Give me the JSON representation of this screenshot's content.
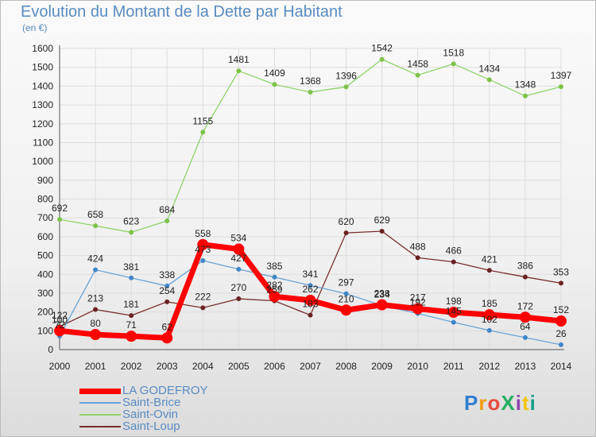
{
  "title": "Evolution du Montant de la Dette par Habitant",
  "subtitle": "(en €)",
  "logo": "ProXiti",
  "colors": {
    "grid": "#dddddd",
    "axis": "#555555",
    "text": "#222222"
  },
  "chart_data": {
    "type": "line",
    "x": [
      "2000",
      "2001",
      "2002",
      "2003",
      "2004",
      "2005",
      "2006",
      "2007",
      "2008",
      "2009",
      "2010",
      "2011",
      "2012",
      "2013",
      "2014"
    ],
    "ylim": [
      0,
      1600
    ],
    "yticks": [
      0,
      100,
      200,
      300,
      400,
      500,
      600,
      700,
      800,
      900,
      1000,
      1100,
      1200,
      1300,
      1400,
      1500,
      1600
    ],
    "grid": true,
    "legend_position": "bottom-left",
    "series": [
      {
        "name": "Saint-Ovin",
        "color": "#8fd46a",
        "marker": "#7cc247",
        "width": 1.3,
        "r": 3,
        "values": [
          692,
          658,
          623,
          684,
          1155,
          1481,
          1409,
          1368,
          1396,
          1542,
          1458,
          1518,
          1434,
          1348,
          1397
        ]
      },
      {
        "name": "Saint-Loup",
        "color": "#7a2e2e",
        "marker": "#6a2222",
        "width": 1.3,
        "r": 3,
        "values": [
          122,
          213,
          181,
          254,
          222,
          270,
          259,
          183,
          620,
          629,
          488,
          466,
          421,
          386,
          353
        ]
      },
      {
        "name": "Saint-Brice",
        "color": "#6aa3d6",
        "marker": "#3f86c8",
        "width": 1.3,
        "r": 3,
        "values": [
          72,
          424,
          381,
          338,
          473,
          427,
          385,
          341,
          297,
          234,
          192,
          145,
          102,
          64,
          26
        ]
      },
      {
        "name": "LA GODEFROY",
        "color": "#ff0000",
        "marker": "#ff0000",
        "width": 7,
        "r": 7,
        "values": [
          100,
          80,
          71,
          62,
          558,
          534,
          282,
          262,
          210,
          238,
          217,
          198,
          185,
          172,
          152
        ]
      }
    ],
    "data_labels": [
      {
        "series": "Saint-Ovin",
        "labels": [
          "692",
          "658",
          "623",
          "684",
          "1155",
          "1481",
          "1409",
          "1368",
          "1396",
          "1542",
          "1458",
          "1518",
          "1434",
          "1348",
          "1397"
        ]
      },
      {
        "series": "Saint-Loup",
        "labels": [
          "122",
          "213",
          "181",
          "254",
          "222",
          "270",
          "259",
          "183",
          "620",
          "629",
          "488",
          "466",
          "421",
          "386",
          "353"
        ]
      },
      {
        "series": "Saint-Brice",
        "labels": [
          "72",
          "424",
          "381",
          "338",
          "473",
          "427",
          "385",
          "341",
          "297",
          "234",
          "192",
          "145",
          "102",
          "64",
          "26"
        ]
      },
      {
        "series": "LA GODEFROY",
        "labels": [
          "100",
          "80",
          "71",
          "62",
          "558",
          "534",
          "282",
          "262",
          "210",
          "238",
          "217",
          "198",
          "185",
          "172",
          "152"
        ]
      }
    ],
    "legend": [
      {
        "name": "LA GODEFROY",
        "color": "#ff0000",
        "thickness": 7
      },
      {
        "name": "Saint-Brice",
        "color": "#6aa3d6",
        "thickness": 2
      },
      {
        "name": "Saint-Ovin",
        "color": "#8fd46a",
        "thickness": 2
      },
      {
        "name": "Saint-Loup",
        "color": "#7a2e2e",
        "thickness": 2
      }
    ]
  }
}
